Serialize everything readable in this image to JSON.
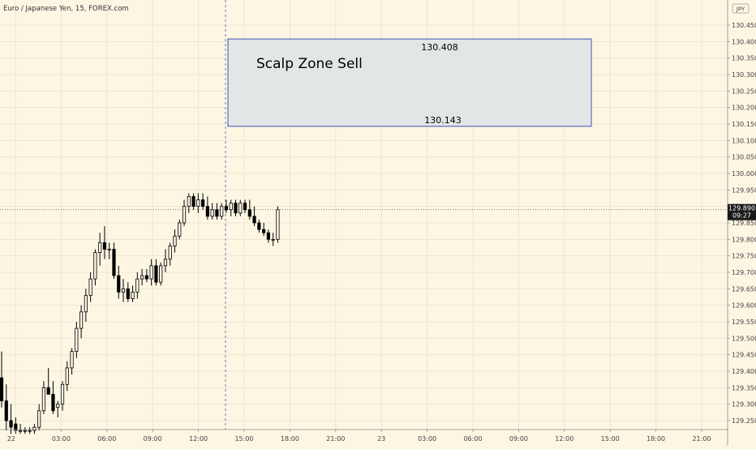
{
  "header": {
    "symbol_title": "Euro / Japanese Yen, 15, FOREX.com"
  },
  "currency_badge": "JPY",
  "price_tag": {
    "price": "129.890",
    "countdown": "09:27"
  },
  "annotation": {
    "label": "Scalp Zone Sell",
    "upper_price": "130.408",
    "lower_price": "130.143",
    "upper_value": 130.408,
    "lower_value": 130.143
  },
  "colors": {
    "background": "#fdf6e3",
    "candle": "#000000",
    "zone_fill": "#e3e6e6",
    "zone_border": "#3f51b5",
    "crosshair": "#6a7fb0"
  },
  "chart_data": {
    "type": "candlestick",
    "title": "Euro / Japanese Yen, 15, FOREX.com",
    "ylim": [
      129.21,
      130.5
    ],
    "y_ticks": [
      "130.450",
      "130.400",
      "130.350",
      "130.300",
      "130.250",
      "130.200",
      "130.150",
      "130.100",
      "130.050",
      "130.000",
      "129.950",
      "129.900",
      "129.850",
      "129.800",
      "129.750",
      "129.700",
      "129.650",
      "129.600",
      "129.550",
      "129.500",
      "129.450",
      "129.400",
      "129.350",
      "129.300",
      "129.250"
    ],
    "x_ticks": [
      "22",
      "03:00",
      "06:00",
      "09:00",
      "12:00",
      "15:00",
      "18:00",
      "21:00",
      "23",
      "03:00",
      "06:00",
      "09:00",
      "12:00",
      "15:00",
      "18:00",
      "21:00"
    ],
    "grid": true,
    "last_price": 129.89,
    "candles": [
      {
        "o": 129.38,
        "h": 129.46,
        "l": 129.29,
        "c": 129.31
      },
      {
        "o": 129.31,
        "h": 129.36,
        "l": 129.22,
        "c": 129.25
      },
      {
        "o": 129.25,
        "h": 129.3,
        "l": 129.21,
        "c": 129.23
      },
      {
        "o": 129.24,
        "h": 129.26,
        "l": 129.21,
        "c": 129.22
      },
      {
        "o": 129.22,
        "h": 129.24,
        "l": 129.21,
        "c": 129.22
      },
      {
        "o": 129.22,
        "h": 129.23,
        "l": 129.21,
        "c": 129.22
      },
      {
        "o": 129.22,
        "h": 129.23,
        "l": 129.21,
        "c": 129.22
      },
      {
        "o": 129.22,
        "h": 129.24,
        "l": 129.21,
        "c": 129.23
      },
      {
        "o": 129.23,
        "h": 129.3,
        "l": 129.22,
        "c": 129.28
      },
      {
        "o": 129.28,
        "h": 129.37,
        "l": 129.27,
        "c": 129.35
      },
      {
        "o": 129.35,
        "h": 129.41,
        "l": 129.33,
        "c": 129.33
      },
      {
        "o": 129.33,
        "h": 129.37,
        "l": 129.27,
        "c": 129.28
      },
      {
        "o": 129.29,
        "h": 129.31,
        "l": 129.26,
        "c": 129.3
      },
      {
        "o": 129.3,
        "h": 129.37,
        "l": 129.28,
        "c": 129.36
      },
      {
        "o": 129.36,
        "h": 129.43,
        "l": 129.34,
        "c": 129.41
      },
      {
        "o": 129.41,
        "h": 129.47,
        "l": 129.39,
        "c": 129.46
      },
      {
        "o": 129.46,
        "h": 129.55,
        "l": 129.44,
        "c": 129.53
      },
      {
        "o": 129.53,
        "h": 129.6,
        "l": 129.5,
        "c": 129.58
      },
      {
        "o": 129.58,
        "h": 129.65,
        "l": 129.55,
        "c": 129.63
      },
      {
        "o": 129.63,
        "h": 129.7,
        "l": 129.61,
        "c": 129.68
      },
      {
        "o": 129.68,
        "h": 129.77,
        "l": 129.66,
        "c": 129.76
      },
      {
        "o": 129.76,
        "h": 129.82,
        "l": 129.72,
        "c": 129.79
      },
      {
        "o": 129.79,
        "h": 129.84,
        "l": 129.74,
        "c": 129.77
      },
      {
        "o": 129.77,
        "h": 129.79,
        "l": 129.74,
        "c": 129.77
      },
      {
        "o": 129.77,
        "h": 129.79,
        "l": 129.68,
        "c": 129.69
      },
      {
        "o": 129.69,
        "h": 129.72,
        "l": 129.62,
        "c": 129.64
      },
      {
        "o": 129.64,
        "h": 129.68,
        "l": 129.61,
        "c": 129.65
      },
      {
        "o": 129.65,
        "h": 129.67,
        "l": 129.61,
        "c": 129.62
      },
      {
        "o": 129.62,
        "h": 129.66,
        "l": 129.61,
        "c": 129.64
      },
      {
        "o": 129.64,
        "h": 129.7,
        "l": 129.62,
        "c": 129.68
      },
      {
        "o": 129.68,
        "h": 129.71,
        "l": 129.66,
        "c": 129.69
      },
      {
        "o": 129.69,
        "h": 129.71,
        "l": 129.67,
        "c": 129.68
      },
      {
        "o": 129.68,
        "h": 129.74,
        "l": 129.66,
        "c": 129.72
      },
      {
        "o": 129.72,
        "h": 129.74,
        "l": 129.66,
        "c": 129.67
      },
      {
        "o": 129.67,
        "h": 129.73,
        "l": 129.66,
        "c": 129.72
      },
      {
        "o": 129.72,
        "h": 129.77,
        "l": 129.7,
        "c": 129.74
      },
      {
        "o": 129.74,
        "h": 129.79,
        "l": 129.72,
        "c": 129.78
      },
      {
        "o": 129.78,
        "h": 129.83,
        "l": 129.76,
        "c": 129.81
      },
      {
        "o": 129.81,
        "h": 129.86,
        "l": 129.8,
        "c": 129.85
      },
      {
        "o": 129.85,
        "h": 129.92,
        "l": 129.84,
        "c": 129.9
      },
      {
        "o": 129.9,
        "h": 129.94,
        "l": 129.88,
        "c": 129.93
      },
      {
        "o": 129.93,
        "h": 129.94,
        "l": 129.89,
        "c": 129.9
      },
      {
        "o": 129.9,
        "h": 129.94,
        "l": 129.88,
        "c": 129.92
      },
      {
        "o": 129.92,
        "h": 129.94,
        "l": 129.89,
        "c": 129.9
      },
      {
        "o": 129.9,
        "h": 129.93,
        "l": 129.86,
        "c": 129.87
      },
      {
        "o": 129.87,
        "h": 129.91,
        "l": 129.86,
        "c": 129.89
      },
      {
        "o": 129.89,
        "h": 129.91,
        "l": 129.86,
        "c": 129.87
      },
      {
        "o": 129.87,
        "h": 129.91,
        "l": 129.86,
        "c": 129.9
      },
      {
        "o": 129.9,
        "h": 129.92,
        "l": 129.88,
        "c": 129.89
      },
      {
        "o": 129.89,
        "h": 129.92,
        "l": 129.87,
        "c": 129.91
      },
      {
        "o": 129.91,
        "h": 129.92,
        "l": 129.87,
        "c": 129.88
      },
      {
        "o": 129.88,
        "h": 129.92,
        "l": 129.87,
        "c": 129.91
      },
      {
        "o": 129.91,
        "h": 129.92,
        "l": 129.88,
        "c": 129.89
      },
      {
        "o": 129.89,
        "h": 129.92,
        "l": 129.86,
        "c": 129.87
      },
      {
        "o": 129.87,
        "h": 129.9,
        "l": 129.84,
        "c": 129.85
      },
      {
        "o": 129.85,
        "h": 129.86,
        "l": 129.82,
        "c": 129.83
      },
      {
        "o": 129.83,
        "h": 129.85,
        "l": 129.81,
        "c": 129.82
      },
      {
        "o": 129.82,
        "h": 129.83,
        "l": 129.79,
        "c": 129.8
      },
      {
        "o": 129.8,
        "h": 129.82,
        "l": 129.78,
        "c": 129.8
      },
      {
        "o": 129.8,
        "h": 129.9,
        "l": 129.79,
        "c": 129.89
      }
    ]
  }
}
